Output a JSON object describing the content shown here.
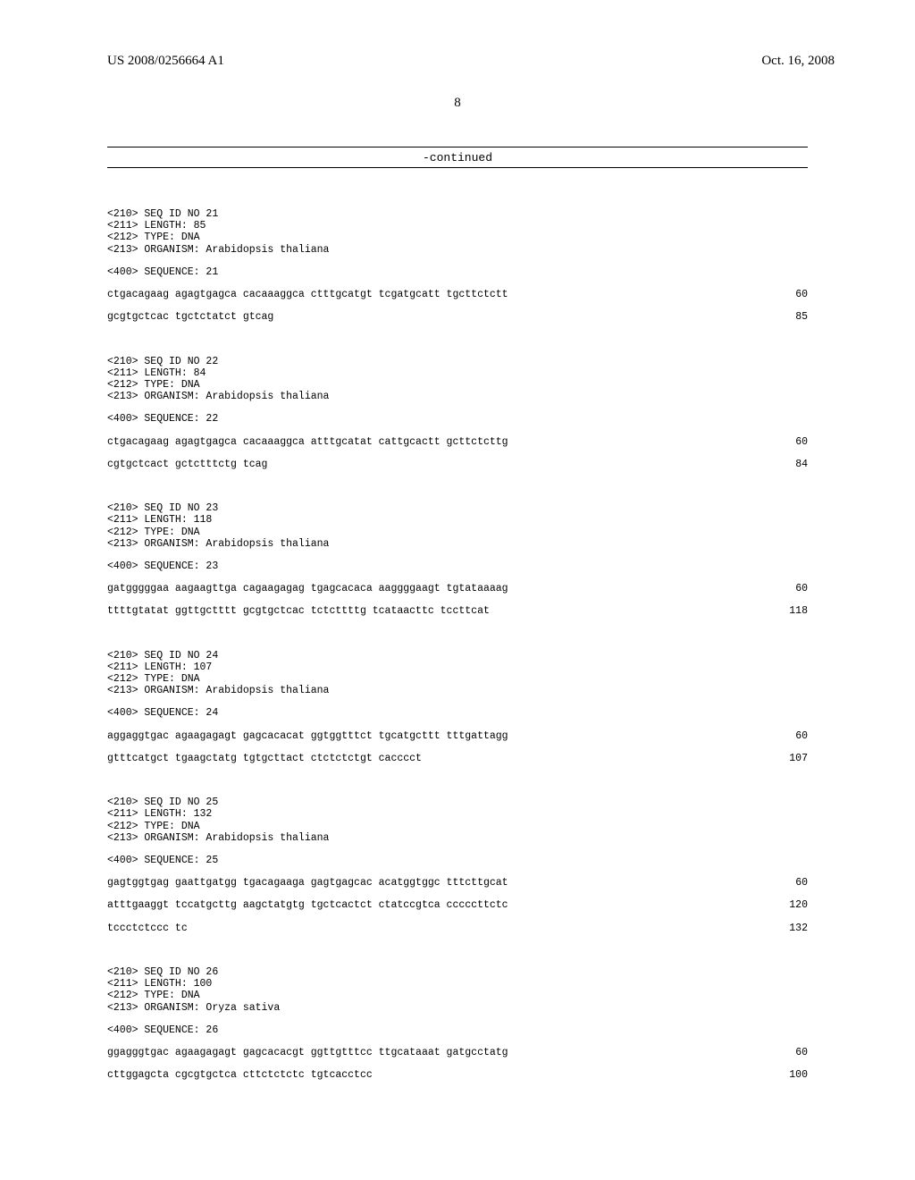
{
  "header": {
    "left": "US 2008/0256664 A1",
    "right": "Oct. 16, 2008"
  },
  "page_number": "8",
  "continued_label": "-continued",
  "sequences": [
    {
      "meta": [
        "<210> SEQ ID NO 21",
        "<211> LENGTH: 85",
        "<212> TYPE: DNA",
        "<213> ORGANISM: Arabidopsis thaliana"
      ],
      "seqheader": "<400> SEQUENCE: 21",
      "lines": [
        {
          "seq": "ctgacagaag agagtgagca cacaaaggca ctttgcatgt tcgatgcatt tgcttctctt",
          "pos": "60"
        },
        {
          "seq": "gcgtgctcac tgctctatct gtcag",
          "pos": "85"
        }
      ]
    },
    {
      "meta": [
        "<210> SEQ ID NO 22",
        "<211> LENGTH: 84",
        "<212> TYPE: DNA",
        "<213> ORGANISM: Arabidopsis thaliana"
      ],
      "seqheader": "<400> SEQUENCE: 22",
      "lines": [
        {
          "seq": "ctgacagaag agagtgagca cacaaaggca atttgcatat cattgcactt gcttctcttg",
          "pos": "60"
        },
        {
          "seq": "cgtgctcact gctctttctg tcag",
          "pos": "84"
        }
      ]
    },
    {
      "meta": [
        "<210> SEQ ID NO 23",
        "<211> LENGTH: 118",
        "<212> TYPE: DNA",
        "<213> ORGANISM: Arabidopsis thaliana"
      ],
      "seqheader": "<400> SEQUENCE: 23",
      "lines": [
        {
          "seq": "gatgggggaa aagaagttga cagaagagag tgagcacaca aaggggaagt tgtataaaag",
          "pos": "60"
        },
        {
          "seq": "ttttgtatat ggttgctttt gcgtgctcac tctcttttg tcataacttc tccttcat",
          "pos": "118"
        }
      ]
    },
    {
      "meta": [
        "<210> SEQ ID NO 24",
        "<211> LENGTH: 107",
        "<212> TYPE: DNA",
        "<213> ORGANISM: Arabidopsis thaliana"
      ],
      "seqheader": "<400> SEQUENCE: 24",
      "lines": [
        {
          "seq": "aggaggtgac agaagagagt gagcacacat ggtggtttct tgcatgcttt tttgattagg",
          "pos": "60"
        },
        {
          "seq": "gtttcatgct tgaagctatg tgtgcttact ctctctctgt cacccct",
          "pos": "107"
        }
      ]
    },
    {
      "meta": [
        "<210> SEQ ID NO 25",
        "<211> LENGTH: 132",
        "<212> TYPE: DNA",
        "<213> ORGANISM: Arabidopsis thaliana"
      ],
      "seqheader": "<400> SEQUENCE: 25",
      "lines": [
        {
          "seq": "gagtggtgag gaattgatgg tgacagaaga gagtgagcac acatggtggc tttcttgcat",
          "pos": "60"
        },
        {
          "seq": "atttgaaggt tccatgcttg aagctatgtg tgctcactct ctatccgtca cccccttctc",
          "pos": "120"
        },
        {
          "seq": "tccctctccc tc",
          "pos": "132"
        }
      ]
    },
    {
      "meta": [
        "<210> SEQ ID NO 26",
        "<211> LENGTH: 100",
        "<212> TYPE: DNA",
        "<213> ORGANISM: Oryza sativa"
      ],
      "seqheader": "<400> SEQUENCE: 26",
      "lines": [
        {
          "seq": "ggagggtgac agaagagagt gagcacacgt ggttgtttcc ttgcataaat gatgcctatg",
          "pos": "60"
        },
        {
          "seq": "cttggagcta cgcgtgctca cttctctctc tgtcacctcc",
          "pos": "100"
        }
      ]
    }
  ]
}
